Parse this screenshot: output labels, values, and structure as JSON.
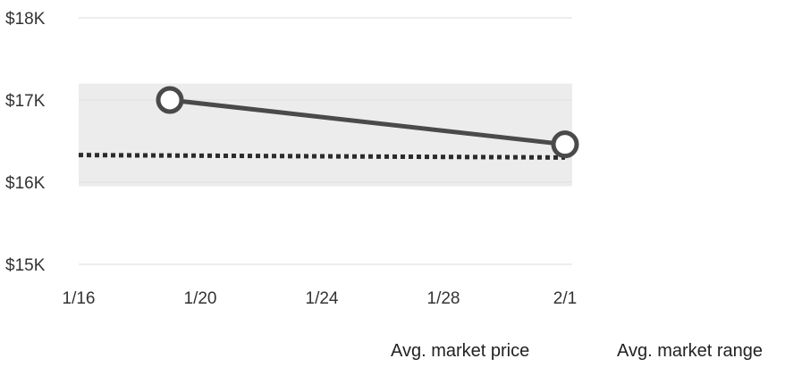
{
  "chart_data": {
    "type": "line",
    "title": "",
    "xlabel": "",
    "ylabel": "",
    "x_ticks": [
      "1/16",
      "1/20",
      "1/24",
      "1/28",
      "2/1"
    ],
    "y_ticks": [
      "$15K",
      "$16K",
      "$17K",
      "$18K"
    ],
    "ylim": [
      15000,
      18000
    ],
    "xlim": [
      "1/16",
      "2/1"
    ],
    "series": [
      {
        "name": "Avg. market price",
        "style": "dotted",
        "color": "#2b2b2b",
        "points": [
          {
            "x": "1/16",
            "y": 16330
          },
          {
            "x": "2/1",
            "y": 16300
          }
        ]
      },
      {
        "name": "",
        "style": "solid-with-markers",
        "color": "#4a4a4a",
        "points": [
          {
            "x": "1/19",
            "y": 17000
          },
          {
            "x": "2/1",
            "y": 16460
          }
        ]
      }
    ],
    "range_band": {
      "name": "Avg. market range",
      "from": 15950,
      "to": 17200,
      "color": "#ececec"
    },
    "grid": true,
    "legend_position": "bottom-right"
  }
}
